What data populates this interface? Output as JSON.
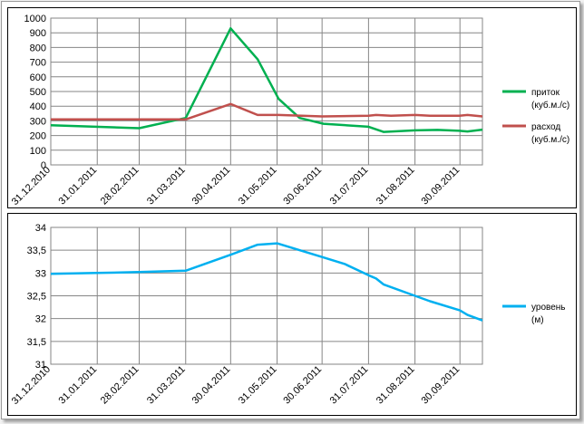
{
  "chart_data": [
    {
      "type": "line",
      "x_labels": [
        "31.12.2010",
        "31.01.2011",
        "28.02.2011",
        "31.03.2011",
        "30.04.2011",
        "31.05.2011",
        "30.06.2011",
        "31.07.2011",
        "31.08.2011",
        "30.09.2011"
      ],
      "xlim": [
        "2010-12-31",
        "2011-10-15"
      ],
      "ylim": [
        0,
        1000
      ],
      "yticks": [
        0,
        100,
        200,
        300,
        400,
        500,
        600,
        700,
        800,
        900,
        1000
      ],
      "grid": true,
      "legend_position": "right",
      "series": [
        {
          "name": "приток",
          "unit": "(куб.м./с)",
          "color": "#00b050",
          "points": [
            [
              "2010-12-31",
              270
            ],
            [
              "2011-02-28",
              250
            ],
            [
              "2011-03-31",
              320
            ],
            [
              "2011-04-30",
              930
            ],
            [
              "2011-05-18",
              720
            ],
            [
              "2011-06-01",
              450
            ],
            [
              "2011-06-15",
              320
            ],
            [
              "2011-07-01",
              280
            ],
            [
              "2011-07-31",
              260
            ],
            [
              "2011-08-10",
              225
            ],
            [
              "2011-08-31",
              235
            ],
            [
              "2011-09-15",
              238
            ],
            [
              "2011-09-30",
              232
            ],
            [
              "2011-10-05",
              228
            ],
            [
              "2011-10-15",
              240
            ]
          ]
        },
        {
          "name": "расход",
          "unit": "(куб.м./с)",
          "color": "#c0504d",
          "points": [
            [
              "2010-12-31",
              310
            ],
            [
              "2011-03-31",
              310
            ],
            [
              "2011-04-30",
              415
            ],
            [
              "2011-05-18",
              340
            ],
            [
              "2011-06-01",
              340
            ],
            [
              "2011-06-30",
              330
            ],
            [
              "2011-07-31",
              335
            ],
            [
              "2011-08-05",
              340
            ],
            [
              "2011-08-15",
              335
            ],
            [
              "2011-08-31",
              340
            ],
            [
              "2011-09-10",
              335
            ],
            [
              "2011-09-30",
              335
            ],
            [
              "2011-10-05",
              340
            ],
            [
              "2011-10-15",
              330
            ]
          ]
        }
      ]
    },
    {
      "type": "line",
      "x_labels": [
        "31.12.2010",
        "31.01.2011",
        "28.02.2011",
        "31.03.2011",
        "30.04.2011",
        "31.05.2011",
        "30.06.2011",
        "31.07.2011",
        "31.08.2011",
        "30.09.2011"
      ],
      "xlim": [
        "2010-12-31",
        "2011-10-15"
      ],
      "ylim": [
        31,
        34
      ],
      "yticks": [
        "31",
        "31,5",
        "32",
        "32,5",
        "33",
        "33,5",
        "34"
      ],
      "grid": true,
      "legend_position": "right",
      "series": [
        {
          "name": "уровень",
          "unit": "(м)",
          "color": "#00b0f0",
          "points": [
            [
              "2010-12-31",
              32.98
            ],
            [
              "2011-01-31",
              33.0
            ],
            [
              "2011-02-28",
              33.02
            ],
            [
              "2011-03-31",
              33.05
            ],
            [
              "2011-04-30",
              33.4
            ],
            [
              "2011-05-18",
              33.62
            ],
            [
              "2011-05-31",
              33.65
            ],
            [
              "2011-06-30",
              33.35
            ],
            [
              "2011-07-15",
              33.2
            ],
            [
              "2011-07-31",
              32.95
            ],
            [
              "2011-08-05",
              32.88
            ],
            [
              "2011-08-10",
              32.75
            ],
            [
              "2011-08-31",
              32.5
            ],
            [
              "2011-09-10",
              32.38
            ],
            [
              "2011-09-30",
              32.18
            ],
            [
              "2011-10-05",
              32.08
            ],
            [
              "2011-10-15",
              31.96
            ]
          ]
        }
      ]
    }
  ]
}
